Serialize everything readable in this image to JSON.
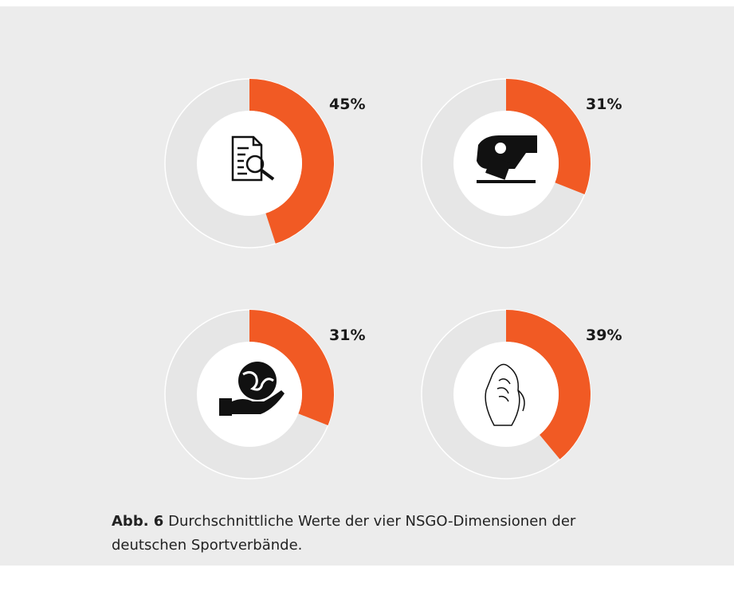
{
  "chart_data": [
    {
      "type": "donut",
      "values": [
        45
      ],
      "value_labels": [
        "45%"
      ],
      "color": "#f15a24"
    },
    {
      "type": "donut",
      "values": [
        31
      ],
      "value_labels": [
        "31%"
      ],
      "color": "#f15a24"
    },
    {
      "type": "donut",
      "values": [
        31
      ],
      "value_labels": [
        "31%"
      ],
      "color": "#f15a24"
    },
    {
      "type": "donut",
      "values": [
        39
      ],
      "value_labels": [
        "39%"
      ],
      "color": "#f15a24"
    }
  ],
  "caption": {
    "label": "Abb. 6",
    "text": "Durchschnittliche Werte der vier NSGO-Dimensionen der deutschen Sportverbände."
  }
}
